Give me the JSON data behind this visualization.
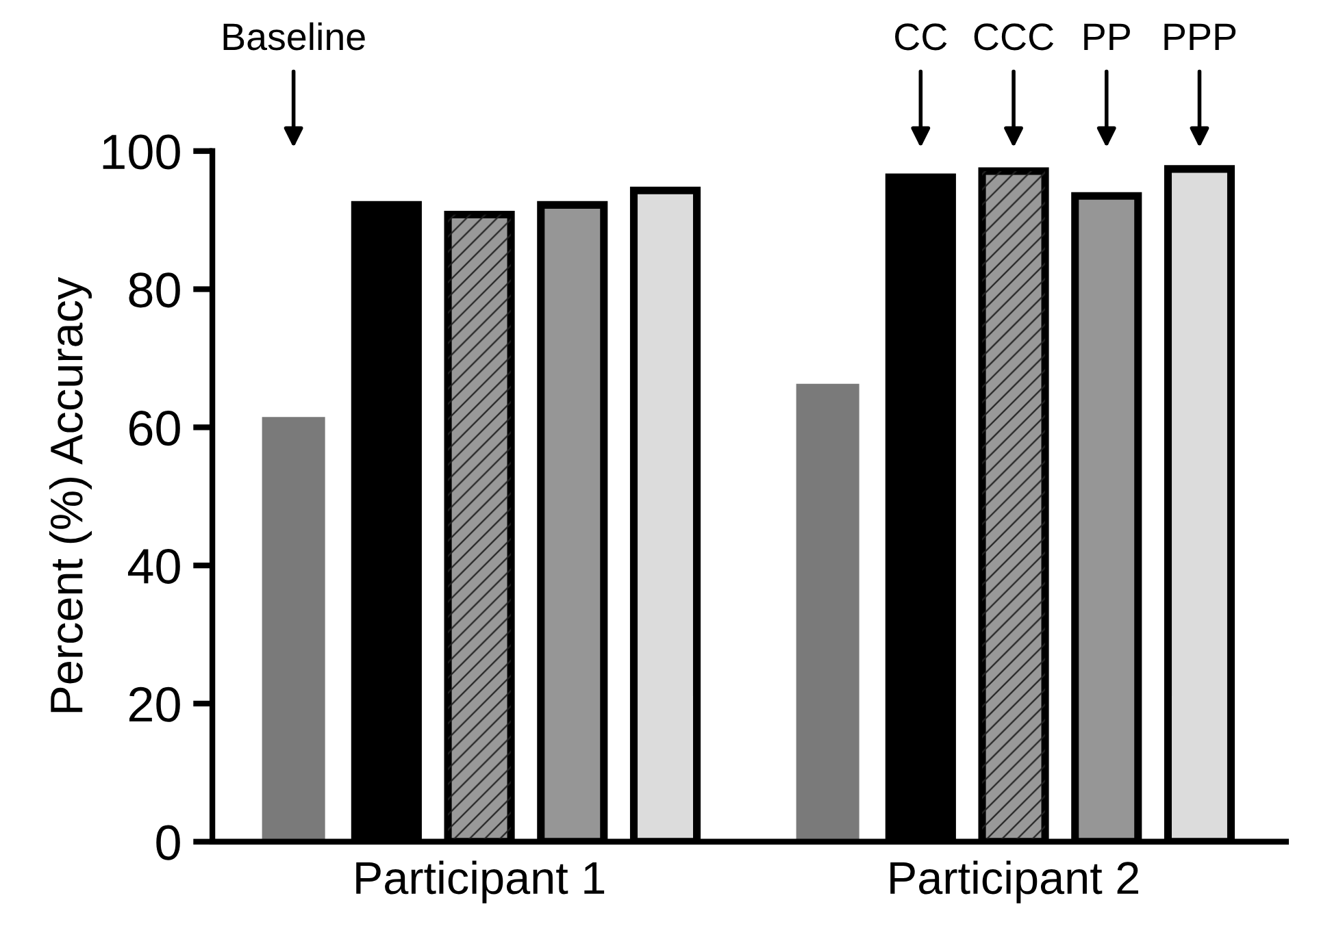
{
  "chart_data": {
    "type": "bar",
    "ylabel": "Percent (%) Accuracy",
    "categories": [
      "Participant 1",
      "Participant 2"
    ],
    "series": [
      {
        "color": "#7a7a7a",
        "values": [
          61.5,
          66.3
        ]
      },
      {
        "color": "#000000",
        "values": [
          92.2,
          96.2
        ]
      },
      {
        "color": "#999999",
        "values": [
          90.8,
          97.1
        ]
      },
      {
        "color": "#969696",
        "values": [
          92.2,
          93.5
        ]
      },
      {
        "color": "#dcdcdc",
        "values": [
          94.3,
          97.4
        ]
      }
    ],
    "annotations": [
      "Baseline",
      "CC",
      "CCC",
      "PP",
      "PPP"
    ],
    "ylim": [
      0,
      100
    ],
    "yticks": [
      0,
      20,
      40,
      60,
      80,
      100
    ],
    "grid": false,
    "legend": false
  }
}
